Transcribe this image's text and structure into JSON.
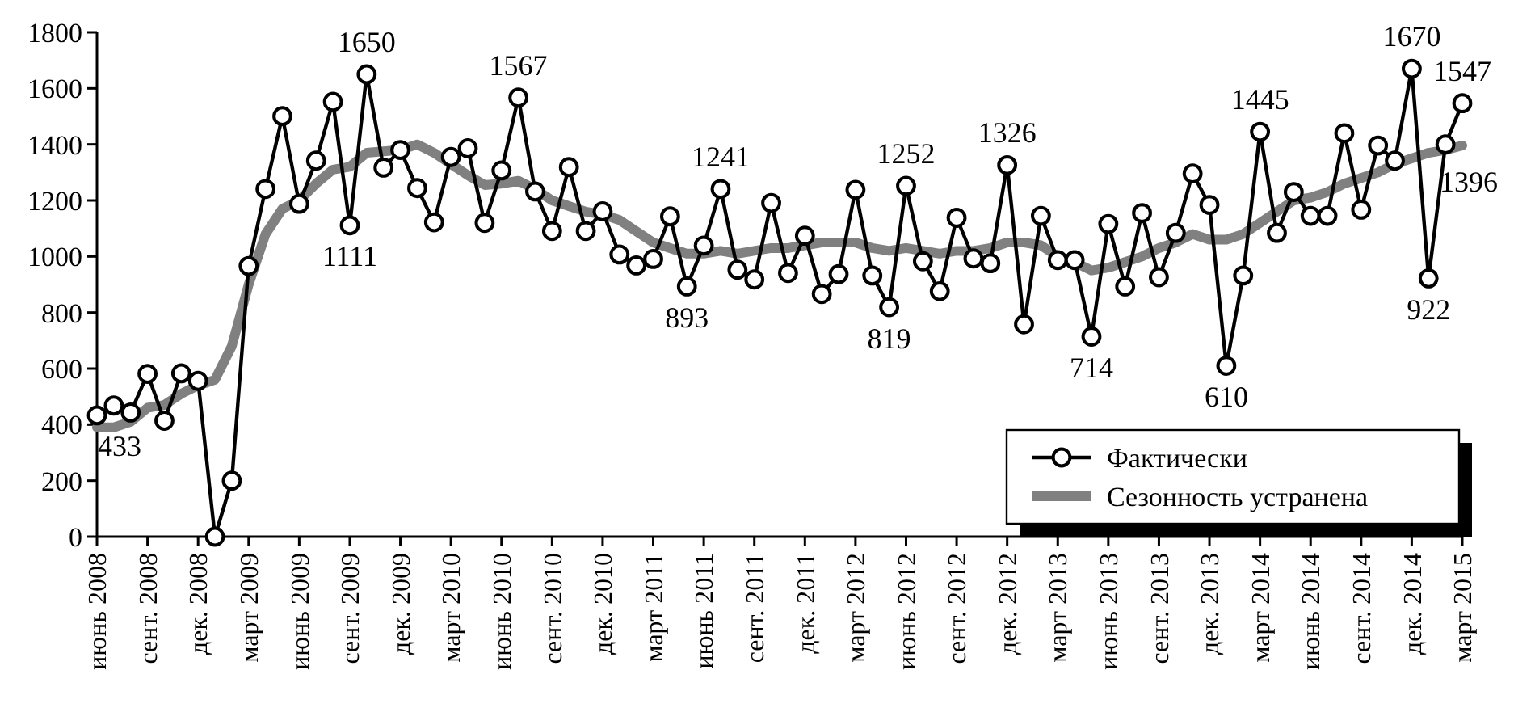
{
  "chart_data": {
    "type": "line",
    "categories": [
      "июнь 2008",
      null,
      null,
      "сент. 2008",
      null,
      null,
      "дек. 2008",
      null,
      null,
      "март 2009",
      null,
      null,
      "июнь 2009",
      null,
      null,
      "сент. 2009",
      null,
      null,
      "дек. 2009",
      null,
      null,
      "март 2010",
      null,
      null,
      "июнь 2010",
      null,
      null,
      "сент. 2010",
      null,
      null,
      "дек. 2010",
      null,
      null,
      "март 2011",
      null,
      null,
      "июнь 2011",
      null,
      null,
      "сент. 2011",
      null,
      null,
      "дек. 2011",
      null,
      null,
      "март 2012",
      null,
      null,
      "июнь 2012",
      null,
      null,
      "сент. 2012",
      null,
      null,
      "дек. 2012",
      null,
      null,
      "март 2013",
      null,
      null,
      "июнь 2013",
      null,
      null,
      "сент. 2013",
      null,
      null,
      "дек. 2013",
      null,
      null,
      "март 2014",
      null,
      null,
      "июнь 2014",
      null,
      null,
      "сент. 2014",
      null,
      null,
      "дек. 2014",
      null,
      null,
      "март 2015"
    ],
    "ylim": [
      0,
      1800
    ],
    "yticks": [
      0,
      200,
      400,
      600,
      800,
      1000,
      1200,
      1400,
      1600,
      1800
    ],
    "grid": false,
    "legend": "bottom right",
    "series": [
      {
        "name": "Фактически",
        "color": "#000000",
        "marker": "circle",
        "values": [
          433,
          468,
          443,
          581,
          414,
          583,
          556,
          0,
          200,
          966,
          1241,
          1501,
          1188,
          1342,
          1552,
          1111,
          1650,
          1317,
          1380,
          1244,
          1122,
          1355,
          1386,
          1120,
          1307,
          1567,
          1232,
          1091,
          1319,
          1091,
          1161,
          1007,
          968,
          991,
          1143,
          893,
          1039,
          1241,
          953,
          918,
          1191,
          941,
          1074,
          866,
          937,
          1238,
          932,
          819,
          1252,
          983,
          876,
          1138,
          993,
          976,
          1326,
          758,
          1145,
          987,
          987,
          714,
          1116,
          893,
          1155,
          926,
          1084,
          1296,
          1184,
          610,
          932,
          1445,
          1084,
          1230,
          1145,
          1145,
          1440,
          1167,
          1396,
          1342,
          1670,
          922,
          1400,
          1547
        ],
        "value_labels": [
          "433",
          null,
          null,
          null,
          null,
          null,
          null,
          null,
          null,
          null,
          null,
          null,
          null,
          null,
          null,
          "1111",
          "1650",
          null,
          null,
          null,
          null,
          null,
          null,
          null,
          null,
          "1567",
          null,
          null,
          null,
          null,
          null,
          null,
          null,
          null,
          null,
          "893",
          null,
          "1241",
          null,
          null,
          null,
          null,
          null,
          null,
          null,
          null,
          null,
          "819",
          "1252",
          null,
          null,
          null,
          null,
          null,
          "1326",
          null,
          null,
          null,
          null,
          "714",
          null,
          null,
          null,
          null,
          null,
          null,
          null,
          "610",
          null,
          "1445",
          null,
          null,
          null,
          null,
          null,
          null,
          null,
          null,
          "1670",
          "922",
          null,
          "1547"
        ]
      },
      {
        "name": "Сезонность устранена",
        "color": "#808080",
        "marker": "none",
        "values": [
          390,
          390,
          410,
          460,
          470,
          510,
          540,
          560,
          680,
          900,
          1080,
          1170,
          1200,
          1260,
          1310,
          1320,
          1370,
          1375,
          1380,
          1400,
          1370,
          1330,
          1290,
          1255,
          1260,
          1270,
          1240,
          1200,
          1180,
          1160,
          1150,
          1130,
          1090,
          1050,
          1030,
          1010,
          1010,
          1020,
          1010,
          1020,
          1030,
          1030,
          1040,
          1050,
          1050,
          1050,
          1030,
          1020,
          1030,
          1020,
          1010,
          1020,
          1020,
          1030,
          1050,
          1050,
          1040,
          1000,
          980,
          950,
          960,
          980,
          1000,
          1030,
          1050,
          1080,
          1060,
          1060,
          1080,
          1120,
          1160,
          1200,
          1210,
          1230,
          1260,
          1280,
          1300,
          1330,
          1350,
          1370,
          1380,
          1396
        ],
        "value_labels": [
          null,
          null,
          null,
          null,
          null,
          null,
          null,
          null,
          null,
          null,
          null,
          null,
          null,
          null,
          null,
          null,
          null,
          null,
          null,
          null,
          null,
          null,
          null,
          null,
          null,
          null,
          null,
          null,
          null,
          null,
          null,
          null,
          null,
          null,
          null,
          null,
          null,
          null,
          null,
          null,
          null,
          null,
          null,
          null,
          null,
          null,
          null,
          null,
          null,
          null,
          null,
          null,
          null,
          null,
          null,
          null,
          null,
          null,
          null,
          null,
          null,
          null,
          null,
          null,
          null,
          null,
          null,
          null,
          null,
          null,
          null,
          null,
          null,
          null,
          null,
          null,
          null,
          null,
          null,
          null,
          null,
          "1396"
        ]
      }
    ]
  }
}
